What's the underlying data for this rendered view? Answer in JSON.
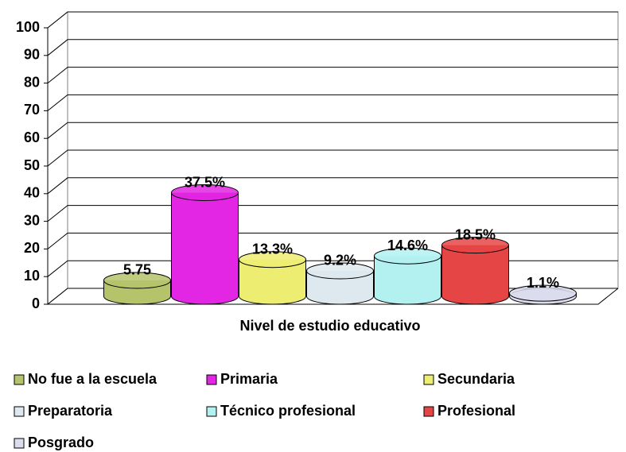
{
  "chart_data": {
    "type": "bar",
    "xlabel": "Nivel de estudio educativo",
    "ylim": [
      0,
      100
    ],
    "yticks": [
      0,
      10,
      20,
      30,
      40,
      50,
      60,
      70,
      80,
      90,
      100
    ],
    "grid": true,
    "series": [
      {
        "name": "No fue a la escuela",
        "color": "#b5c46a",
        "values": [
          5.75
        ]
      },
      {
        "name": "Primaria",
        "color": "#e326e3",
        "values": [
          37.5
        ],
        "value_labels": [
          "37.5%"
        ]
      },
      {
        "name": "Secundaria",
        "color": "#eded72",
        "values": [
          13.3
        ],
        "value_labels": [
          "13.3%"
        ]
      },
      {
        "name": "Preparatoria",
        "color": "#dde9ee",
        "values": [
          9.2
        ],
        "value_labels": [
          "9.2%"
        ]
      },
      {
        "name": "Técnico profesional",
        "color": "#b3f1f1",
        "values": [
          14.6
        ],
        "value_labels": [
          "14.6%"
        ]
      },
      {
        "name": "Profesional",
        "color": "#e64545",
        "values": [
          18.5
        ],
        "value_labels": [
          "18.5%"
        ]
      },
      {
        "name": "Posgrado",
        "color": "#dcdcef",
        "values": [
          1.1
        ],
        "value_labels": [
          "1.1%"
        ]
      }
    ]
  }
}
